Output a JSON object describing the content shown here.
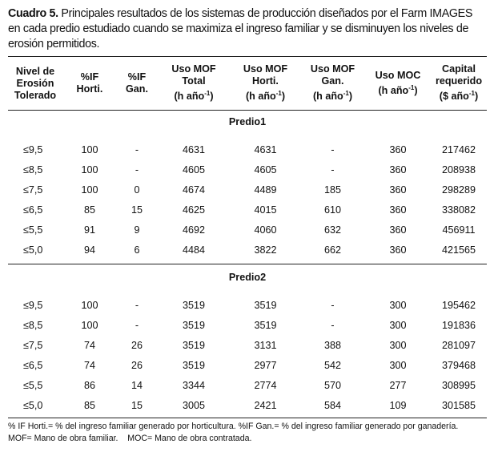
{
  "caption": {
    "label": "Cuadro 5.",
    "text": " Principales resultados de los sistemas de producción diseñados por el Farm IMAGES en cada predio estudiado cuando se maximiza el ingreso familiar y se disminuyen los niveles de erosión permitidos."
  },
  "table": {
    "headers": [
      [
        "Nivel de",
        "Erosión",
        "Tolerado"
      ],
      [
        "%IF",
        "Horti."
      ],
      [
        "%IF",
        "Gan."
      ],
      [
        "Uso MOF",
        "Total",
        "(h año-1)"
      ],
      [
        "Uso MOF",
        "Horti.",
        "(h año-1)"
      ],
      [
        "Uso MOF",
        "Gan.",
        "(h año-1)"
      ],
      [
        "Uso MOC",
        "(h año-1)"
      ],
      [
        "Capital",
        "requerido",
        "($ año-1)"
      ]
    ],
    "sections": [
      {
        "title": "Predio1",
        "rows": [
          [
            "≤9,5",
            "100",
            "-",
            "4631",
            "4631",
            "-",
            "360",
            "217462"
          ],
          [
            "≤8,5",
            "100",
            "-",
            "4605",
            "4605",
            "-",
            "360",
            "208938"
          ],
          [
            "≤7,5",
            "100",
            "0",
            "4674",
            "4489",
            "185",
            "360",
            "298289"
          ],
          [
            "≤6,5",
            "85",
            "15",
            "4625",
            "4015",
            "610",
            "360",
            "338082"
          ],
          [
            "≤5,5",
            "91",
            "9",
            "4692",
            "4060",
            "632",
            "360",
            "456911"
          ],
          [
            "≤5,0",
            "94",
            "6",
            "4484",
            "3822",
            "662",
            "360",
            "421565"
          ]
        ]
      },
      {
        "title": "Predio2",
        "rows": [
          [
            "≤9,5",
            "100",
            "-",
            "3519",
            "3519",
            "-",
            "300",
            "195462"
          ],
          [
            "≤8,5",
            "100",
            "-",
            "3519",
            "3519",
            "-",
            "300",
            "191836"
          ],
          [
            "≤7,5",
            "74",
            "26",
            "3519",
            "3131",
            "388",
            "300",
            "281097"
          ],
          [
            "≤6,5",
            "74",
            "26",
            "3519",
            "2977",
            "542",
            "300",
            "379468"
          ],
          [
            "≤5,5",
            "86",
            "14",
            "3344",
            "2774",
            "570",
            "277",
            "308995"
          ],
          [
            "≤5,0",
            "85",
            "15",
            "3005",
            "2421",
            "584",
            "109",
            "301585"
          ]
        ]
      }
    ]
  },
  "footnote": {
    "line1": "% IF Horti.= % del ingreso familiar generado por horticultura. %IF Gan.= % del ingreso familiar generado por ganadería.",
    "line2": "MOF= Mano de obra familiar.    MOC= Mano de obra contratada."
  }
}
